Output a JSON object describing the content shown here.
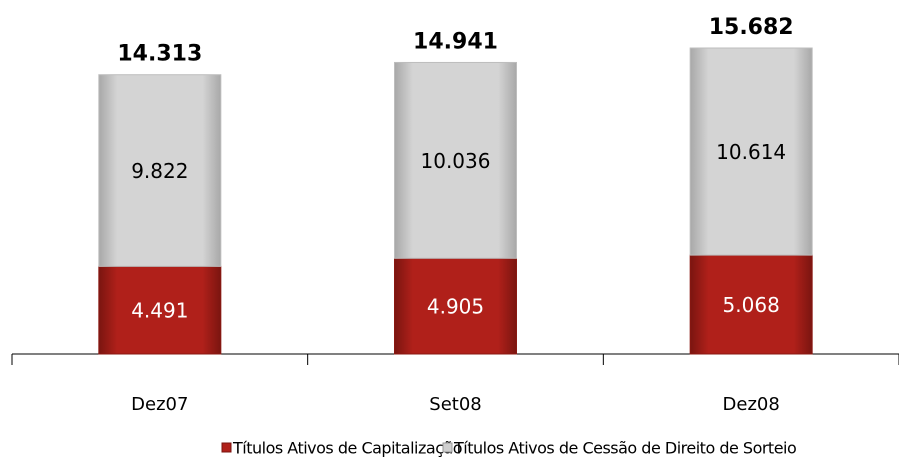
{
  "chart_data": {
    "type": "stacked_bar",
    "categories": [
      "Dez07",
      "Set08",
      "Dez08"
    ],
    "series": [
      {
        "name": "Títulos Ativos de Capitalização",
        "color": "#b0201a",
        "values": [
          4.491,
          4.905,
          5.068
        ]
      },
      {
        "name": "Títulos Ativos de Cessão de Direito de Sorteio",
        "color": "#cfcfcf",
        "values": [
          9.822,
          10.036,
          10.614
        ]
      }
    ],
    "totals": [
      14.313,
      14.941,
      15.682
    ]
  }
}
